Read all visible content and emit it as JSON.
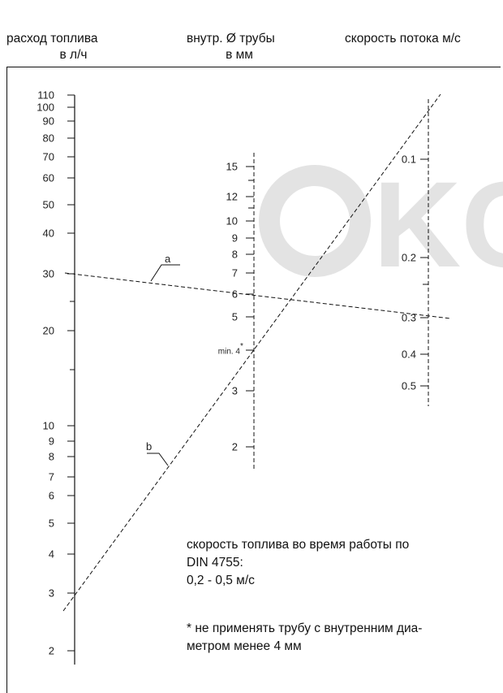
{
  "headers": {
    "flow": [
      "расход топлива",
      "в л/ч"
    ],
    "diameter": [
      "внутр. Ø трубы",
      "в мм"
    ],
    "speed": [
      "скорость потока м/с"
    ]
  },
  "axes": {
    "flow": {
      "ticks": [
        "110",
        "100",
        "90",
        "80",
        "70",
        "60",
        "50",
        "40",
        "30",
        "20",
        "10",
        "9",
        "8",
        "7",
        "6",
        "5",
        "4",
        "3",
        "2"
      ]
    },
    "diameter": {
      "ticks": [
        "15",
        "12",
        "10",
        "9",
        "8",
        "7",
        "6",
        "5",
        "min. 4",
        "3",
        "2"
      ],
      "star": "*"
    },
    "speed": {
      "ticks": [
        "0.1",
        "0.2",
        "0.3",
        "0.4",
        "0.5"
      ]
    }
  },
  "lines": {
    "a": {
      "label": "a"
    },
    "b": {
      "label": "b"
    }
  },
  "watermark": {
    "text": "OKO",
    "color": "#e3e3e3"
  },
  "notes": {
    "note1": [
      "скорость топлива во время работы по",
      "DIN 4755:",
      "0,2 - 0,5 м/с"
    ],
    "note2": [
      "* не применять трубу с внутренним диа-",
      "метром менее 4 мм"
    ]
  }
}
